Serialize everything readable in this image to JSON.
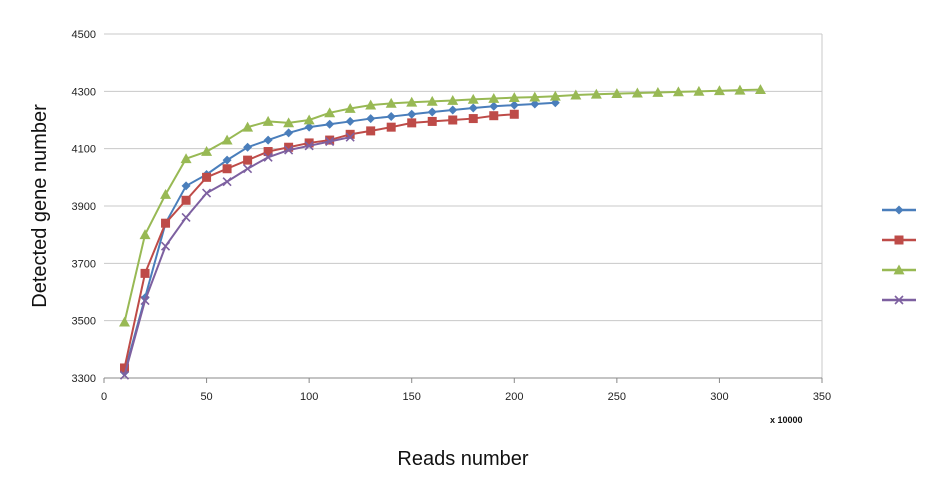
{
  "chart_data": {
    "type": "line",
    "title": "",
    "xlabel": "Reads number",
    "ylabel": "Detected gene number",
    "x_unit_label": "x 10000",
    "xlim": [
      0,
      350
    ],
    "ylim": [
      3300,
      4500
    ],
    "xticks": [
      0,
      50,
      100,
      150,
      200,
      250,
      300,
      350
    ],
    "yticks": [
      3300,
      3500,
      3700,
      3900,
      4100,
      4300,
      4500
    ],
    "grid": "horizontal",
    "legend_position": "right",
    "series": [
      {
        "marker": "diamond",
        "color": "#4a7ebb",
        "points": [
          [
            10,
            3320
          ],
          [
            20,
            3580
          ],
          [
            30,
            3840
          ],
          [
            40,
            3970
          ],
          [
            50,
            4010
          ],
          [
            60,
            4060
          ],
          [
            70,
            4105
          ],
          [
            80,
            4130
          ],
          [
            90,
            4155
          ],
          [
            100,
            4175
          ],
          [
            110,
            4185
          ],
          [
            120,
            4195
          ],
          [
            130,
            4205
          ],
          [
            140,
            4212
          ],
          [
            150,
            4220
          ],
          [
            160,
            4228
          ],
          [
            170,
            4235
          ],
          [
            180,
            4242
          ],
          [
            190,
            4248
          ],
          [
            200,
            4252
          ],
          [
            210,
            4256
          ],
          [
            220,
            4260
          ]
        ]
      },
      {
        "marker": "square",
        "color": "#be4b48",
        "points": [
          [
            10,
            3335
          ],
          [
            20,
            3665
          ],
          [
            30,
            3840
          ],
          [
            40,
            3920
          ],
          [
            50,
            4000
          ],
          [
            60,
            4030
          ],
          [
            70,
            4060
          ],
          [
            80,
            4090
          ],
          [
            90,
            4105
          ],
          [
            100,
            4120
          ],
          [
            110,
            4130
          ],
          [
            120,
            4150
          ],
          [
            130,
            4162
          ],
          [
            140,
            4175
          ],
          [
            150,
            4190
          ],
          [
            160,
            4195
          ],
          [
            170,
            4200
          ],
          [
            180,
            4205
          ],
          [
            190,
            4215
          ],
          [
            200,
            4220
          ]
        ]
      },
      {
        "marker": "triangle",
        "color": "#98b954",
        "points": [
          [
            10,
            3495
          ],
          [
            20,
            3800
          ],
          [
            30,
            3940
          ],
          [
            40,
            4065
          ],
          [
            50,
            4090
          ],
          [
            60,
            4130
          ],
          [
            70,
            4175
          ],
          [
            80,
            4195
          ],
          [
            90,
            4190
          ],
          [
            100,
            4200
          ],
          [
            110,
            4225
          ],
          [
            120,
            4240
          ],
          [
            130,
            4252
          ],
          [
            140,
            4258
          ],
          [
            150,
            4262
          ],
          [
            160,
            4265
          ],
          [
            170,
            4268
          ],
          [
            180,
            4272
          ],
          [
            190,
            4275
          ],
          [
            200,
            4278
          ],
          [
            210,
            4280
          ],
          [
            220,
            4283
          ],
          [
            230,
            4287
          ],
          [
            240,
            4290
          ],
          [
            250,
            4292
          ],
          [
            260,
            4294
          ],
          [
            270,
            4296
          ],
          [
            280,
            4298
          ],
          [
            290,
            4300
          ],
          [
            300,
            4302
          ],
          [
            310,
            4304
          ],
          [
            320,
            4306
          ]
        ]
      },
      {
        "marker": "x",
        "color": "#7d60a0",
        "points": [
          [
            10,
            3310
          ],
          [
            20,
            3570
          ],
          [
            30,
            3760
          ],
          [
            40,
            3860
          ],
          [
            50,
            3945
          ],
          [
            60,
            3985
          ],
          [
            70,
            4030
          ],
          [
            80,
            4070
          ],
          [
            90,
            4095
          ],
          [
            100,
            4110
          ],
          [
            110,
            4125
          ],
          [
            120,
            4140
          ]
        ]
      }
    ]
  }
}
